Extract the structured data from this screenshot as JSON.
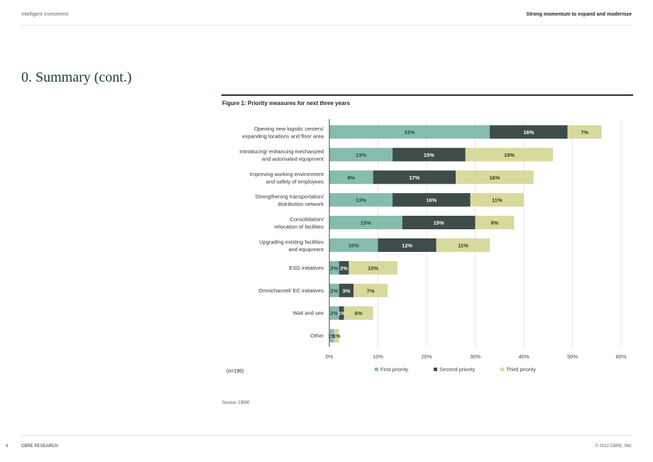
{
  "header": {
    "left": "Intelligent Investment",
    "right": "Strong momentum to expand and modernize"
  },
  "page_title": "0.   Summary (cont.)",
  "figure": {
    "title": "Figure 1: Priority measures for next three years",
    "note": "(n=195)",
    "source": "Source: CBRE"
  },
  "footer": {
    "page": "4",
    "left": "CBRE RESEARCH",
    "right": "© 2022 CBRE, INC"
  },
  "colors": {
    "first": "#86bcae",
    "second": "#3e4c4a",
    "third": "#d8d99d",
    "grid": "#e6e6e6",
    "axis": "#444444"
  },
  "chart_data": {
    "type": "bar",
    "orientation": "horizontal",
    "stacked": true,
    "categories": [
      [
        "Opening new logistic centers/",
        "expanding locations and floor area"
      ],
      [
        "Introducing/ enhancing mechanized",
        "and automated equipment"
      ],
      [
        "Improving working environment",
        "and safety of employees"
      ],
      [
        "Strengthening transportation/",
        "distribution network"
      ],
      [
        "Consolidation/",
        "relocation of facilities"
      ],
      [
        "Upgrading existing facilities",
        "and equipment"
      ],
      [
        "ESG initiatives"
      ],
      [
        "Omnichannel/ EC initiatives"
      ],
      [
        "Wait and see"
      ],
      [
        "Other"
      ]
    ],
    "series": [
      {
        "name": "First priority",
        "values": [
          33,
          13,
          9,
          13,
          15,
          10,
          2,
          2,
          2,
          1
        ]
      },
      {
        "name": "Second priority",
        "values": [
          16,
          15,
          17,
          16,
          15,
          12,
          2,
          3,
          1,
          0
        ]
      },
      {
        "name": "Third priority",
        "values": [
          7,
          18,
          16,
          11,
          8,
          11,
          10,
          7,
          6,
          1
        ]
      }
    ],
    "xlim": [
      0,
      60
    ],
    "xticks": [
      "0%",
      "10%",
      "20%",
      "30%",
      "40%",
      "50%",
      "60%"
    ],
    "grid": true,
    "legend_position": "bottom",
    "value_suffix": "%"
  }
}
